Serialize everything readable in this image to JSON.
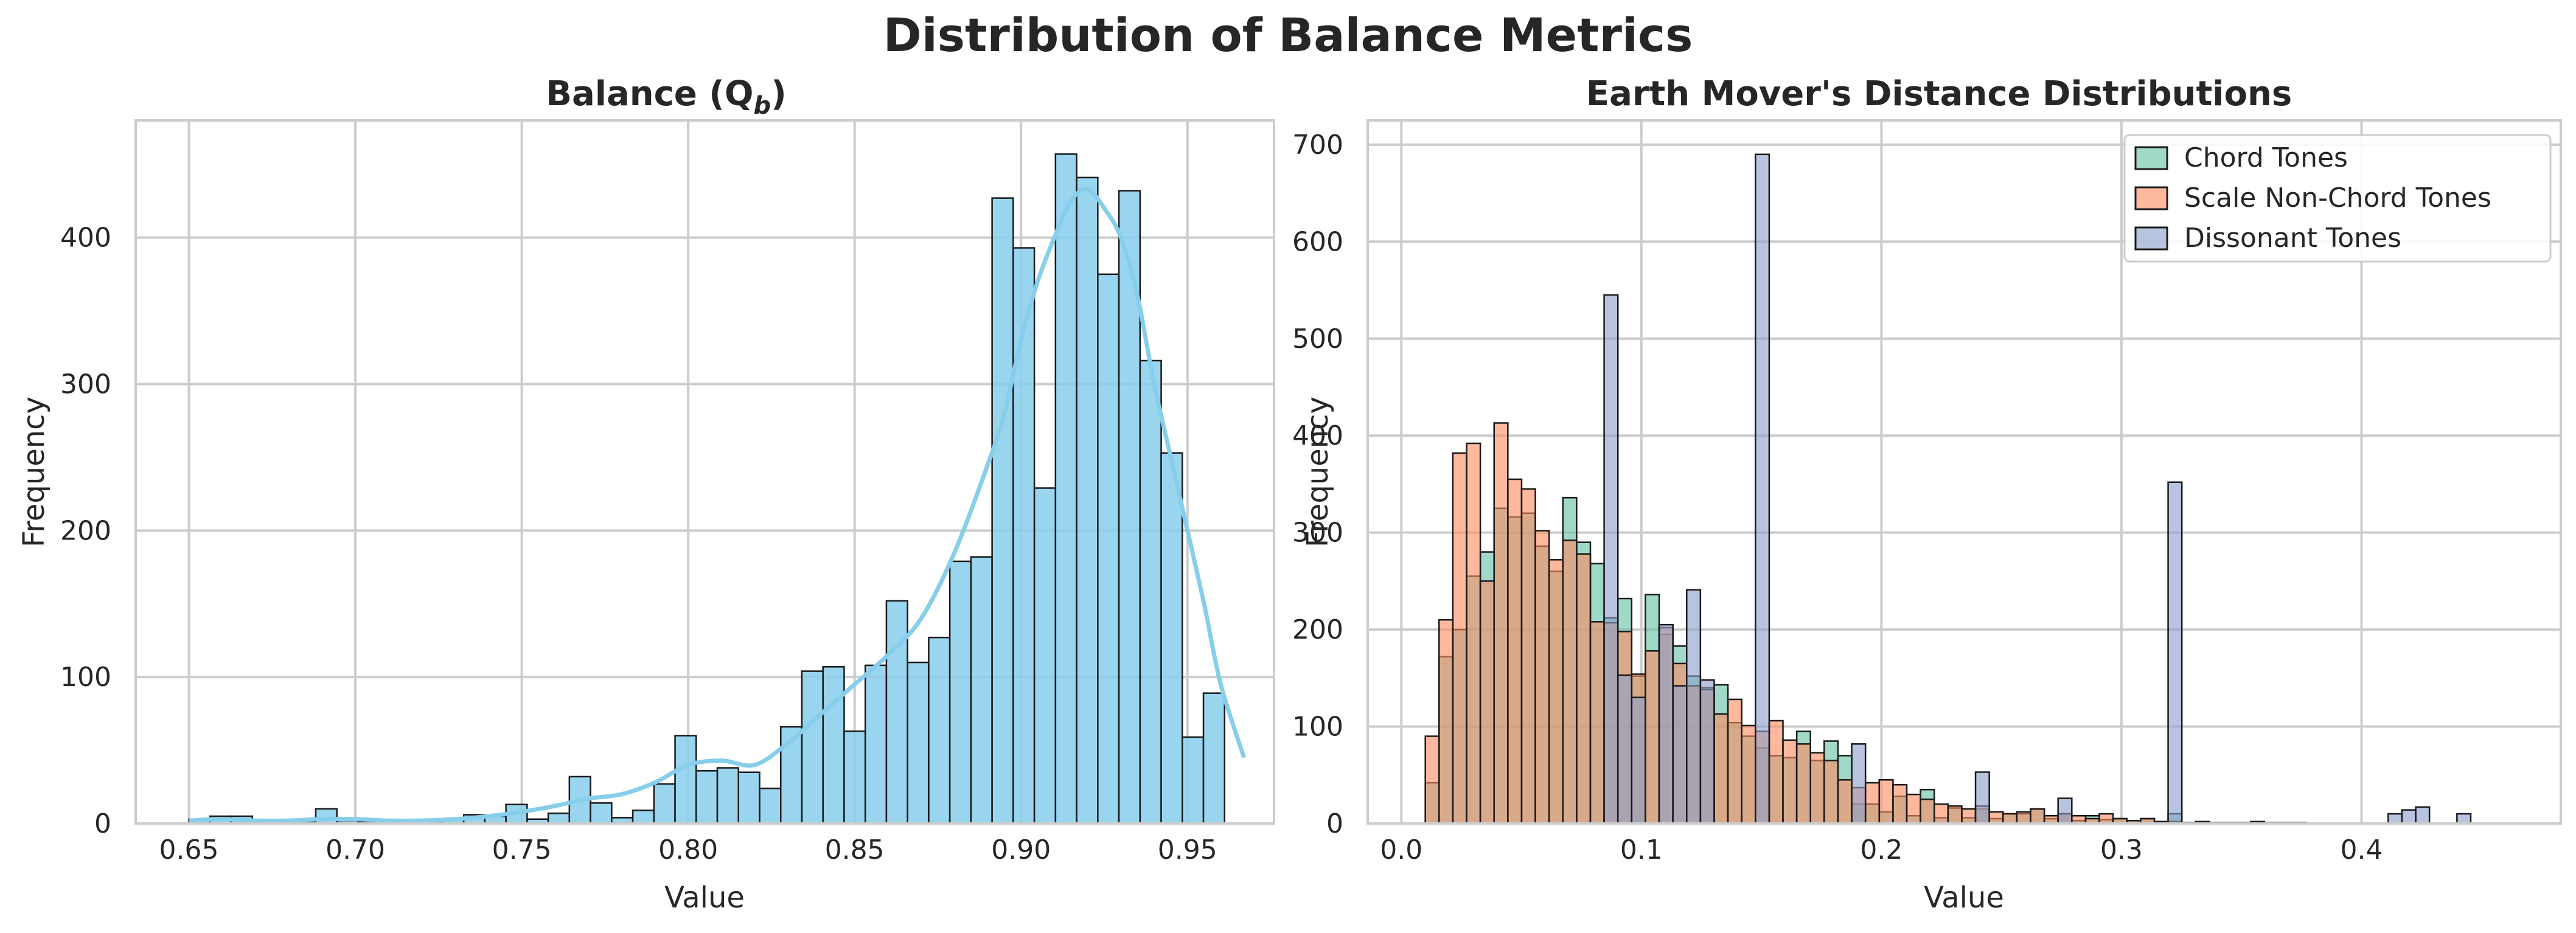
{
  "figure": {
    "title": "Distribution of Balance Metrics"
  },
  "colors": {
    "balance": "#87CEEB",
    "chord": "#66C2A5",
    "scale": "#FC8D62",
    "dissonant": "#8DA0CB",
    "edge": "#1a1a1a",
    "grid": "#cccccc"
  },
  "chart_data": [
    {
      "type": "bar",
      "title": "Balance (Q",
      "title_sub": "b",
      "title_close": ")",
      "xlabel": "Value",
      "ylabel": "Frequency",
      "xlim": [
        0.634,
        0.976
      ],
      "ylim": [
        0,
        480
      ],
      "xticks": [
        0.65,
        0.7,
        0.75,
        0.8,
        0.85,
        0.9,
        0.95
      ],
      "xtick_labels": [
        "0.65",
        "0.70",
        "0.75",
        "0.80",
        "0.85",
        "0.90",
        "0.95"
      ],
      "yticks": [
        0,
        100,
        200,
        300,
        400
      ],
      "ytick_labels": [
        "0",
        "100",
        "200",
        "300",
        "400"
      ],
      "grid": true,
      "bin_start": 0.65,
      "bin_width": 0.00635,
      "values": [
        3,
        5,
        5,
        2,
        1,
        1,
        10,
        2,
        1,
        1,
        1,
        1,
        3,
        6,
        5,
        13,
        3,
        7,
        32,
        14,
        4,
        9,
        27,
        60,
        36,
        38,
        35,
        24,
        66,
        104,
        107,
        63,
        108,
        152,
        110,
        127,
        179,
        182,
        427,
        393,
        229,
        457,
        441,
        375,
        432,
        316,
        253,
        59,
        89
      ],
      "kde": {
        "x": [
          0.65,
          0.66,
          0.67,
          0.68,
          0.69,
          0.7,
          0.71,
          0.72,
          0.73,
          0.74,
          0.75,
          0.76,
          0.77,
          0.78,
          0.79,
          0.8,
          0.81,
          0.82,
          0.83,
          0.84,
          0.85,
          0.86,
          0.87,
          0.88,
          0.89,
          0.895,
          0.9,
          0.905,
          0.91,
          0.915,
          0.92,
          0.925,
          0.93,
          0.935,
          0.94,
          0.945,
          0.95,
          0.955,
          0.96,
          0.967
        ],
        "y": [
          2,
          3,
          2,
          2,
          3,
          3,
          2,
          2,
          3,
          5,
          8,
          12,
          17,
          20,
          28,
          40,
          43,
          40,
          55,
          75,
          95,
          115,
          140,
          185,
          245,
          280,
          330,
          370,
          400,
          425,
          433,
          420,
          400,
          360,
          300,
          250,
          200,
          150,
          95,
          45
        ]
      }
    },
    {
      "type": "bar",
      "title": "Earth Mover's Distance Distributions",
      "xlabel": "Value",
      "ylabel": "Frequency",
      "xlim": [
        -0.014,
        0.483
      ],
      "ylim": [
        0,
        725
      ],
      "xticks": [
        0.0,
        0.1,
        0.2,
        0.3,
        0.4
      ],
      "xtick_labels": [
        "0.0",
        "0.1",
        "0.2",
        "0.3",
        "0.4"
      ],
      "yticks": [
        0,
        100,
        200,
        300,
        400,
        500,
        600,
        700
      ],
      "ytick_labels": [
        "0",
        "100",
        "200",
        "300",
        "400",
        "500",
        "600",
        "700"
      ],
      "grid": true,
      "legend_position": "top-right",
      "bin_start": 0.01,
      "bin_width": 0.00573,
      "series": [
        {
          "name": "Chord Tones",
          "color": "#66C2A5",
          "values": [
            42,
            172,
            200,
            255,
            280,
            325,
            316,
            320,
            286,
            260,
            336,
            290,
            268,
            212,
            232,
            152,
            236,
            195,
            183,
            152,
            140,
            143,
            104,
            90,
            78,
            70,
            68,
            95,
            65,
            85,
            70,
            20,
            20,
            12,
            28,
            8,
            35,
            6,
            16,
            6,
            15,
            5,
            10,
            10,
            15,
            5,
            10,
            3,
            8,
            4,
            5,
            3,
            5,
            2,
            10,
            1,
            0,
            0,
            0,
            0,
            0,
            0,
            0,
            0,
            0,
            0,
            0,
            0,
            0,
            0,
            0,
            0,
            0,
            0,
            0,
            0,
            0,
            0,
            0,
            0,
            0
          ]
        },
        {
          "name": "Scale Non-Chord Tones",
          "color": "#FC8D62",
          "values": [
            90,
            210,
            382,
            392,
            250,
            413,
            355,
            345,
            302,
            272,
            292,
            278,
            208,
            207,
            198,
            154,
            178,
            202,
            165,
            142,
            138,
            113,
            128,
            101,
            95,
            106,
            86,
            82,
            73,
            65,
            45,
            37,
            42,
            45,
            40,
            30,
            25,
            20,
            18,
            15,
            18,
            12,
            10,
            12,
            15,
            8,
            10,
            8,
            5,
            10,
            5,
            3,
            5,
            2,
            2,
            1,
            2,
            1,
            1,
            1,
            2,
            1,
            1,
            1,
            0,
            0,
            0,
            0,
            0,
            0,
            0,
            0,
            0,
            0,
            0,
            0,
            0,
            0,
            0,
            0,
            0
          ]
        },
        {
          "name": "Dissonant Tones",
          "color": "#8DA0CB",
          "values": [
            0,
            0,
            0,
            0,
            0,
            0,
            0,
            0,
            0,
            0,
            0,
            0,
            0,
            545,
            153,
            130,
            0,
            205,
            142,
            241,
            148,
            0,
            0,
            0,
            690,
            0,
            0,
            0,
            0,
            0,
            0,
            82,
            0,
            0,
            0,
            0,
            0,
            0,
            0,
            0,
            53,
            0,
            0,
            0,
            0,
            0,
            26,
            0,
            0,
            0,
            0,
            0,
            0,
            0,
            352,
            0,
            0,
            0,
            0,
            0,
            0,
            0,
            0,
            0,
            0,
            0,
            0,
            0,
            0,
            0,
            10,
            14,
            17,
            0,
            0,
            10,
            0,
            0,
            0,
            0,
            0
          ]
        }
      ]
    }
  ]
}
